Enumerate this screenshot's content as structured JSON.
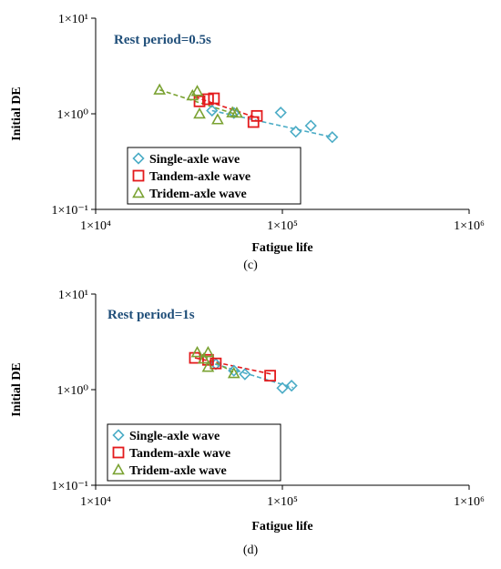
{
  "colors": {
    "single": "#4bacc6",
    "tandem": "#e31a1c",
    "tridem": "#7aa232",
    "annotation": "#1f4e79"
  },
  "chart_data": [
    {
      "type": "scatter",
      "panel_label": "(c)",
      "annotation": "Rest period=0.5s",
      "xlabel": "Fatigue life",
      "ylabel": "Initial DE",
      "xscale": "log",
      "yscale": "log",
      "xlim": [
        10000,
        1000000
      ],
      "ylim": [
        0.1,
        10
      ],
      "xtick_labels": [
        "1×10⁴",
        "1×10⁵",
        "1×10⁶"
      ],
      "ytick_labels": [
        "1×10⁻¹",
        "1×10⁰",
        "1×10¹"
      ],
      "grid": false,
      "legend_position": "bottom-left",
      "series": [
        {
          "name": "Single-axle wave",
          "marker": "diamond",
          "color_key": "single",
          "x": [
            42000,
            55000,
            98000,
            118000,
            142000,
            185000
          ],
          "y": [
            1.08,
            1.02,
            1.03,
            0.65,
            0.75,
            0.57
          ],
          "trendline": [
            [
              42000,
              1.08
            ],
            [
              185000,
              0.57
            ]
          ]
        },
        {
          "name": "Tandem-axle wave",
          "marker": "square",
          "color_key": "tandem",
          "x": [
            36000,
            40000,
            43000,
            70000,
            73000
          ],
          "y": [
            1.35,
            1.42,
            1.45,
            0.82,
            0.95
          ],
          "trendline": [
            [
              34000,
              1.5
            ],
            [
              74000,
              0.9
            ]
          ]
        },
        {
          "name": "Tridem-axle wave",
          "marker": "triangle",
          "color_key": "tridem",
          "x": [
            22000,
            33000,
            35000,
            36000,
            45000,
            54000,
            57000
          ],
          "y": [
            1.78,
            1.55,
            1.72,
            1.0,
            0.87,
            1.03,
            1.02
          ],
          "trendline": [
            [
              22000,
              1.78
            ],
            [
              57000,
              0.98
            ]
          ]
        }
      ]
    },
    {
      "type": "scatter",
      "panel_label": "(d)",
      "annotation": "Rest period=1s",
      "xlabel": "Fatigue life",
      "ylabel": "Initial DE",
      "xscale": "log",
      "yscale": "log",
      "xlim": [
        10000,
        1000000
      ],
      "ylim": [
        0.1,
        10
      ],
      "xtick_labels": [
        "1×10⁴",
        "1×10⁵",
        "1×10⁶"
      ],
      "ytick_labels": [
        "1×10⁻¹",
        "1×10⁰",
        "1×10¹"
      ],
      "grid": false,
      "legend_position": "bottom-left",
      "series": [
        {
          "name": "Single-axle wave",
          "marker": "diamond",
          "color_key": "single",
          "x": [
            44000,
            55000,
            63000,
            100000,
            112000
          ],
          "y": [
            1.85,
            1.58,
            1.45,
            1.04,
            1.1
          ],
          "trendline": [
            [
              40000,
              1.95
            ],
            [
              114000,
              1.05
            ]
          ]
        },
        {
          "name": "Tandem-axle wave",
          "marker": "square",
          "color_key": "tandem",
          "x": [
            34000,
            40000,
            44000,
            86000
          ],
          "y": [
            2.15,
            2.05,
            1.88,
            1.4
          ],
          "trendline": [
            [
              34000,
              2.15
            ],
            [
              88000,
              1.45
            ]
          ]
        },
        {
          "name": "Tridem-axle wave",
          "marker": "triangle",
          "color_key": "tridem",
          "x": [
            35000,
            38000,
            40000,
            40000,
            55000
          ],
          "y": [
            2.45,
            2.1,
            2.45,
            1.72,
            1.48
          ],
          "trendline": [
            [
              35000,
              2.45
            ],
            [
              56000,
              1.48
            ]
          ]
        }
      ]
    }
  ]
}
